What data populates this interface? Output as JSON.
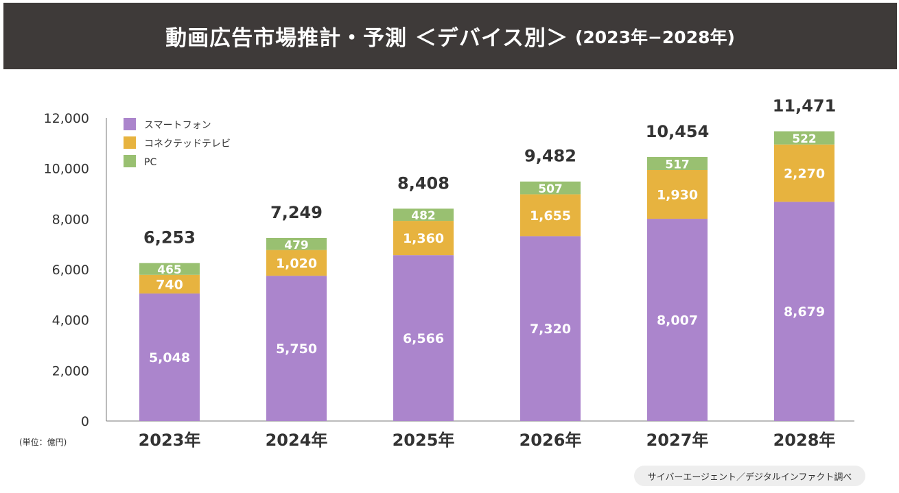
{
  "header": {
    "title": "動画広告市場推計・予測 ＜デバイス別＞",
    "subtitle": "(2023年−2028年)"
  },
  "unit_label": "(単位：億円)",
  "source": "サイバーエージェント／デジタルインファクト調べ",
  "colors": {
    "smartphone": "#ab85cc",
    "ctv": "#e7b33f",
    "pc": "#99c071",
    "title_bg": "#3e3a39",
    "axis": "#777777"
  },
  "chart_data": {
    "type": "bar",
    "stacked": true,
    "title": "動画広告市場推計・予測 ＜デバイス別＞ (2023年−2028年)",
    "xlabel": "",
    "ylabel": "",
    "ylim": [
      0,
      12000
    ],
    "y_ticks": [
      0,
      2000,
      4000,
      6000,
      8000,
      10000,
      12000
    ],
    "y_tick_labels": [
      "0",
      "2,000",
      "4,000",
      "6,000",
      "8,000",
      "10,000",
      "12,000"
    ],
    "categories": [
      "2023年",
      "2024年",
      "2025年",
      "2026年",
      "2027年",
      "2028年"
    ],
    "series": [
      {
        "name": "スマートフォン",
        "color": "#ab85cc",
        "values": [
          5048,
          5750,
          6566,
          7320,
          8007,
          8679
        ],
        "labels": [
          "5,048",
          "5,750",
          "6,566",
          "7,320",
          "8,007",
          "8,679"
        ]
      },
      {
        "name": "コネクテッドテレビ",
        "color": "#e7b33f",
        "values": [
          740,
          1020,
          1360,
          1655,
          1930,
          2270
        ],
        "labels": [
          "740",
          "1,020",
          "1,360",
          "1,655",
          "1,930",
          "2,270"
        ]
      },
      {
        "name": "PC",
        "color": "#99c071",
        "values": [
          465,
          479,
          482,
          507,
          517,
          522
        ],
        "labels": [
          "465",
          "479",
          "482",
          "507",
          "517",
          "522"
        ]
      }
    ],
    "totals": [
      6253,
      7249,
      8408,
      9482,
      10454,
      11471
    ],
    "total_labels": [
      "6,253",
      "7,249",
      "8,408",
      "9,482",
      "10,454",
      "11,471"
    ],
    "legend": "top-left",
    "grid": false
  }
}
